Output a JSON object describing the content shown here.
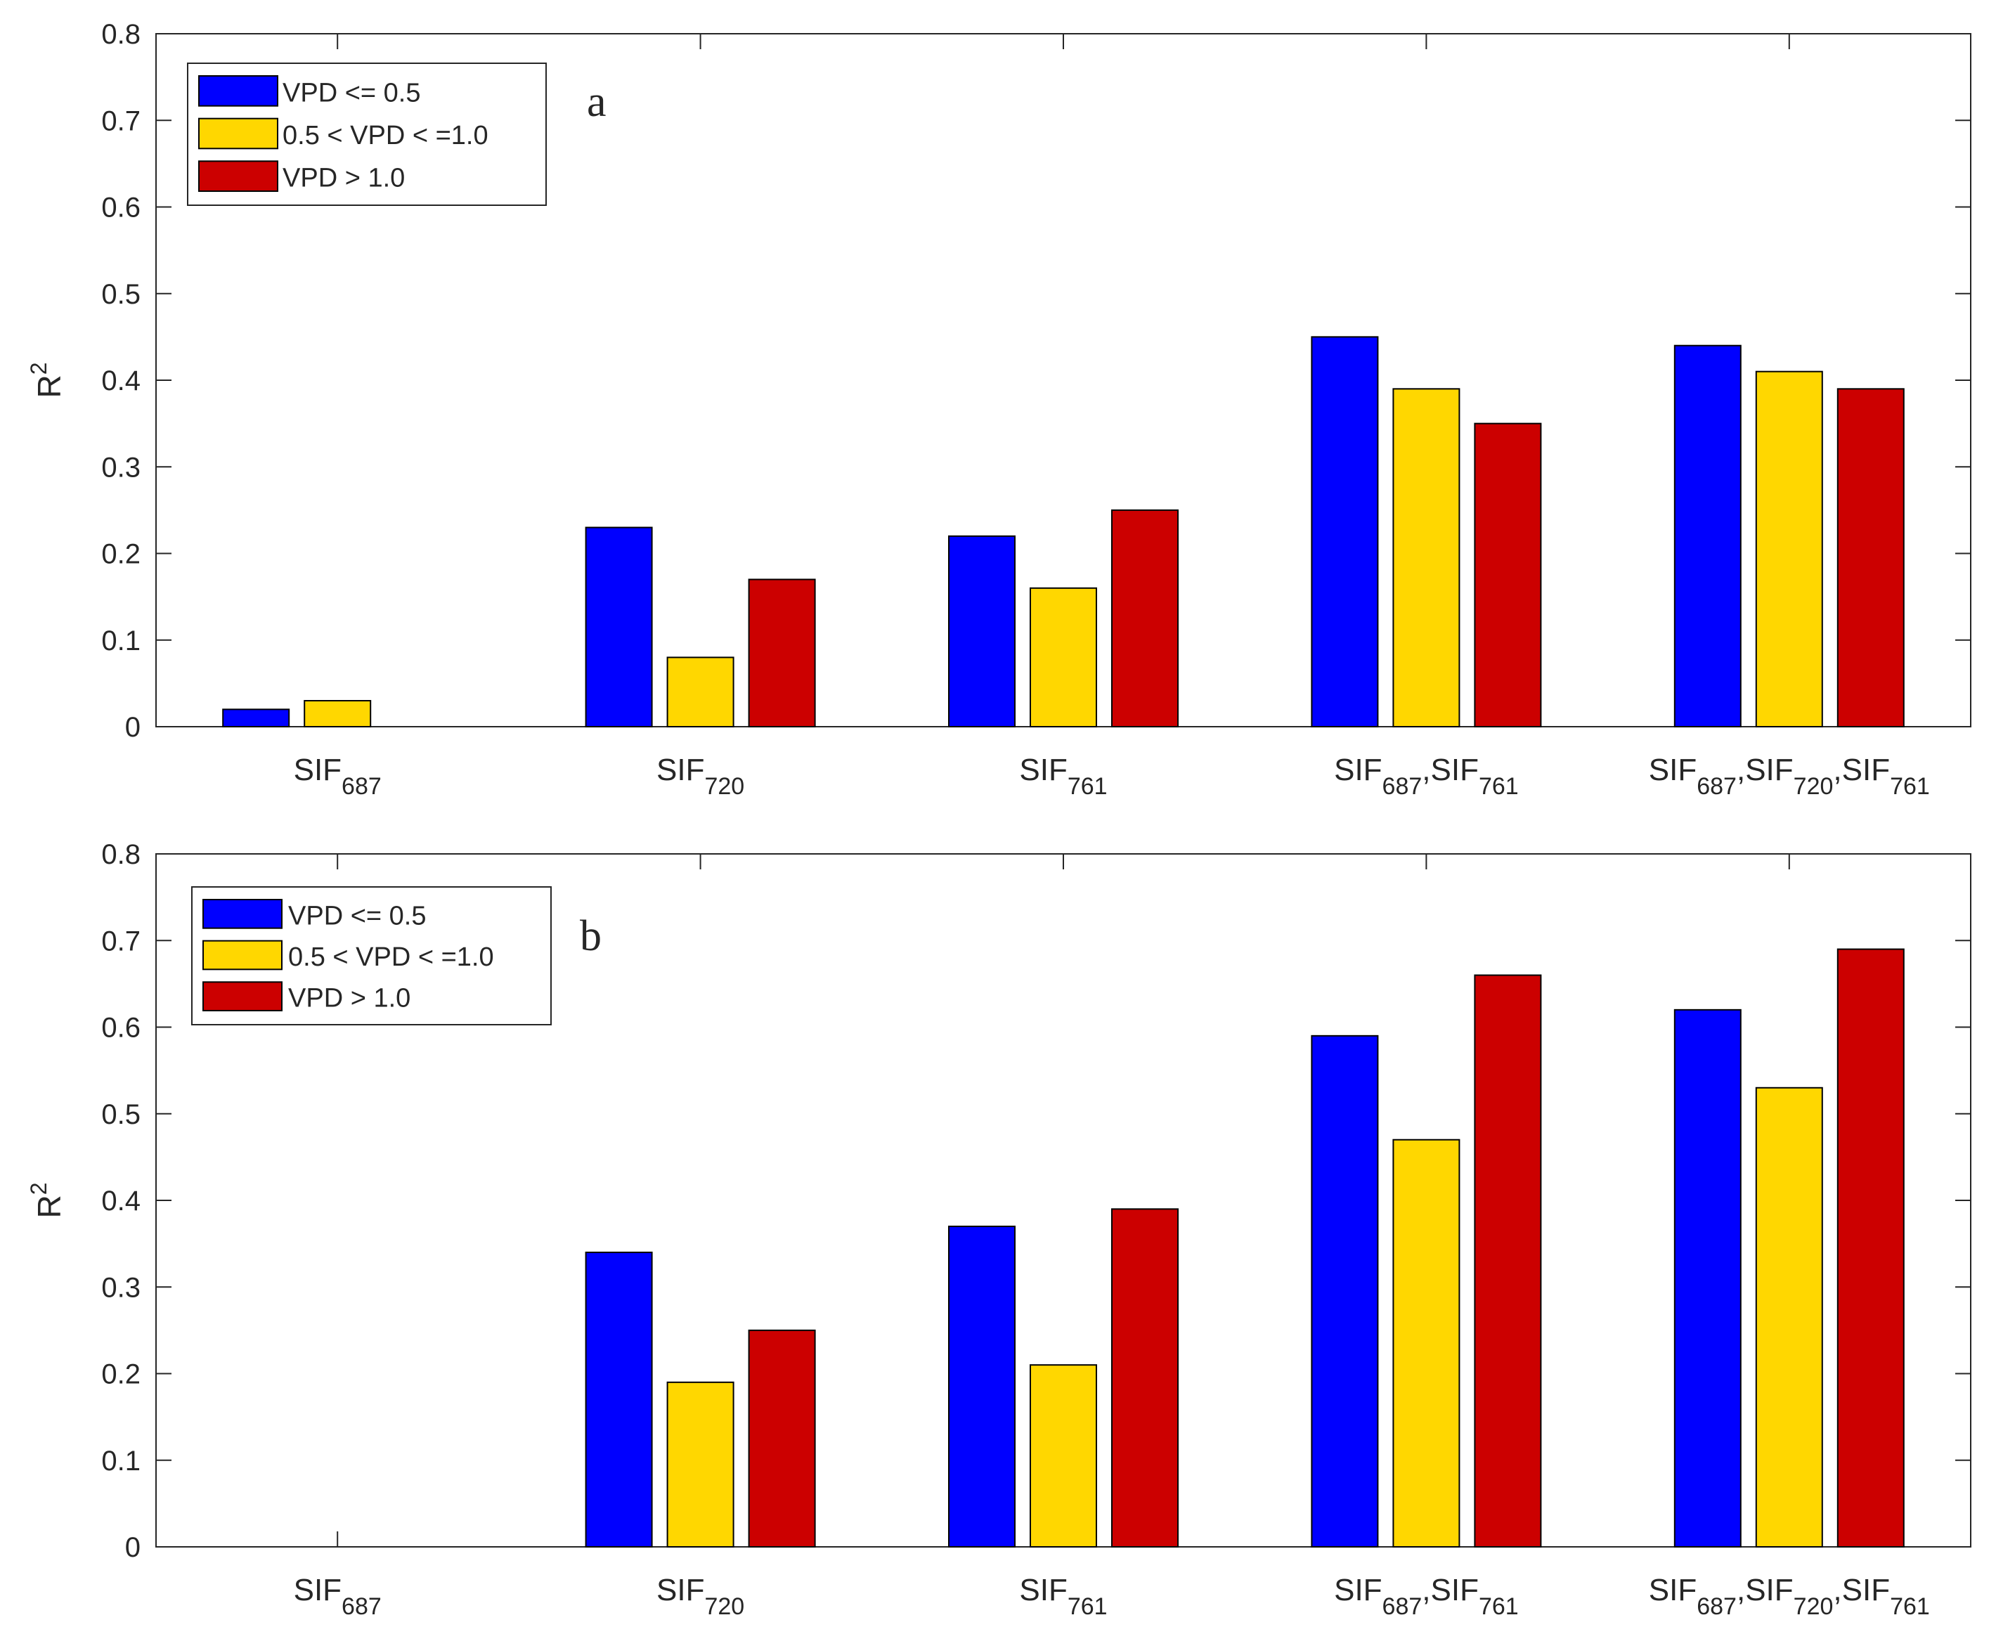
{
  "chart_data": [
    {
      "type": "bar",
      "panel_label": "a",
      "ylabel_base": "R",
      "ylabel_sup": "2",
      "ylim": [
        0,
        0.8
      ],
      "yticks": [
        "0",
        "0.1",
        "0.2",
        "0.3",
        "0.4",
        "0.5",
        "0.6",
        "0.7",
        "0.8"
      ],
      "grid": false,
      "legend_position": "top-left",
      "categories": [
        [
          {
            "base": "SIF",
            "sub": "687"
          }
        ],
        [
          {
            "base": "SIF",
            "sub": "720"
          }
        ],
        [
          {
            "base": "SIF",
            "sub": "761"
          }
        ],
        [
          {
            "base": "SIF",
            "sub": "687"
          },
          {
            "base": ",SIF",
            "sub": "761"
          }
        ],
        [
          {
            "base": "SIF",
            "sub": "687"
          },
          {
            "base": ",SIF",
            "sub": "720"
          },
          {
            "base": ",SIF",
            "sub": "761"
          }
        ]
      ],
      "series": [
        {
          "name": "VPD <= 0.5",
          "color": "#0000ff",
          "values": [
            0.02,
            0.23,
            0.22,
            0.45,
            0.44
          ]
        },
        {
          "name": "0.5 < VPD < =1.0",
          "color": "#ffd700",
          "values": [
            0.03,
            0.08,
            0.16,
            0.39,
            0.41
          ]
        },
        {
          "name": "VPD > 1.0",
          "color": "#cc0000",
          "values": [
            0.0,
            0.17,
            0.25,
            0.35,
            0.39
          ]
        }
      ]
    },
    {
      "type": "bar",
      "panel_label": "b",
      "ylabel_base": "R",
      "ylabel_sup": "2",
      "ylim": [
        0,
        0.8
      ],
      "yticks": [
        "0",
        "0.1",
        "0.2",
        "0.3",
        "0.4",
        "0.5",
        "0.6",
        "0.7",
        "0.8"
      ],
      "grid": false,
      "legend_position": "top-left",
      "categories": [
        [
          {
            "base": "SIF",
            "sub": "687"
          }
        ],
        [
          {
            "base": "SIF",
            "sub": "720"
          }
        ],
        [
          {
            "base": "SIF",
            "sub": "761"
          }
        ],
        [
          {
            "base": "SIF",
            "sub": "687"
          },
          {
            "base": ",SIF",
            "sub": "761"
          }
        ],
        [
          {
            "base": "SIF",
            "sub": "687"
          },
          {
            "base": ",SIF",
            "sub": "720"
          },
          {
            "base": ",SIF",
            "sub": "761"
          }
        ]
      ],
      "series": [
        {
          "name": "VPD <= 0.5",
          "color": "#0000ff",
          "values": [
            0.0,
            0.34,
            0.37,
            0.59,
            0.62
          ]
        },
        {
          "name": "0.5 < VPD < =1.0",
          "color": "#ffd700",
          "values": [
            0.0,
            0.19,
            0.21,
            0.47,
            0.53
          ]
        },
        {
          "name": "VPD > 1.0",
          "color": "#cc0000",
          "values": [
            0.0,
            0.25,
            0.39,
            0.66,
            0.69
          ]
        }
      ]
    }
  ]
}
